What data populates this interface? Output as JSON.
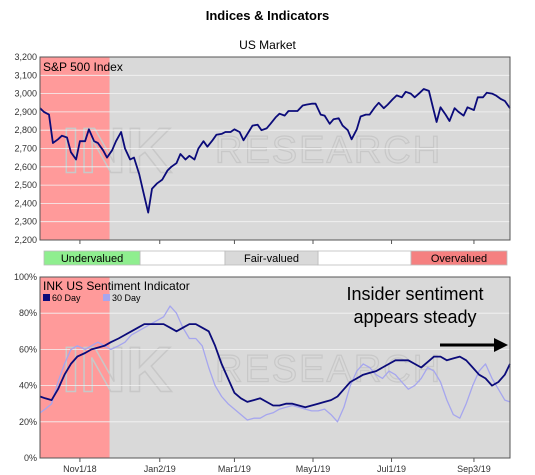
{
  "title": "Indices & Indicators",
  "subtitle": "US Market",
  "watermark": "RESEARCH",
  "colors": {
    "panel_bg": "#d9d9d9",
    "shade_red": "#ff9a9a",
    "line_dark": "#0b0b7a",
    "line_light": "#a6a6ee",
    "undervalued": "#8fee8f",
    "fairvalued": "#d9d9d9",
    "overvalued": "#f58080"
  },
  "valuation_bands": [
    {
      "label": "Undervalued",
      "color": "#8fee8f"
    },
    {
      "label": "Fair-valued",
      "color": "#d9d9d9"
    },
    {
      "label": "Overvalued",
      "color": "#f58080"
    }
  ],
  "annotation": {
    "line1": "Insider sentiment",
    "line2": "appears steady"
  },
  "chart_data": [
    {
      "type": "line",
      "name": "S&P 500 Index",
      "ylim": [
        2200,
        3200
      ],
      "yticks": [
        "3,200",
        "3,100",
        "3,000",
        "2,900",
        "2,800",
        "2,700",
        "2,600",
        "2,500",
        "2,400",
        "2,300",
        "2,200"
      ],
      "ytick_values": [
        3200,
        3100,
        3000,
        2900,
        2800,
        2700,
        2600,
        2500,
        2400,
        2300,
        2200
      ],
      "x_range": [
        "2018-10-01",
        "2019-10-01"
      ],
      "shaded_period": [
        "2018-10-01",
        "2018-11-24"
      ],
      "series": [
        {
          "name": "S&P 500 Index",
          "color": "#0b0b7a",
          "x": [
            "2018-10-01",
            "2018-10-04",
            "2018-10-08",
            "2018-10-11",
            "2018-10-15",
            "2018-10-18",
            "2018-10-22",
            "2018-10-25",
            "2018-10-29",
            "2018-11-01",
            "2018-11-05",
            "2018-11-08",
            "2018-11-12",
            "2018-11-15",
            "2018-11-19",
            "2018-11-22",
            "2018-11-26",
            "2018-11-29",
            "2018-12-03",
            "2018-12-06",
            "2018-12-10",
            "2018-12-13",
            "2018-12-17",
            "2018-12-20",
            "2018-12-24",
            "2018-12-27",
            "2018-12-31",
            "2019-01-04",
            "2019-01-08",
            "2019-01-11",
            "2019-01-15",
            "2019-01-18",
            "2019-01-22",
            "2019-01-25",
            "2019-01-29",
            "2019-02-01",
            "2019-02-05",
            "2019-02-08",
            "2019-02-12",
            "2019-02-15",
            "2019-02-19",
            "2019-02-22",
            "2019-02-26",
            "2019-03-01",
            "2019-03-05",
            "2019-03-08",
            "2019-03-12",
            "2019-03-15",
            "2019-03-19",
            "2019-03-22",
            "2019-03-26",
            "2019-03-29",
            "2019-04-02",
            "2019-04-05",
            "2019-04-09",
            "2019-04-12",
            "2019-04-16",
            "2019-04-19",
            "2019-04-23",
            "2019-04-26",
            "2019-04-30",
            "2019-05-03",
            "2019-05-07",
            "2019-05-10",
            "2019-05-14",
            "2019-05-17",
            "2019-05-21",
            "2019-05-24",
            "2019-05-28",
            "2019-05-31",
            "2019-06-04",
            "2019-06-07",
            "2019-06-11",
            "2019-06-14",
            "2019-06-18",
            "2019-06-21",
            "2019-06-25",
            "2019-06-28",
            "2019-07-02",
            "2019-07-05",
            "2019-07-09",
            "2019-07-12",
            "2019-07-16",
            "2019-07-19",
            "2019-07-23",
            "2019-07-26",
            "2019-07-30",
            "2019-08-02",
            "2019-08-05",
            "2019-08-08",
            "2019-08-12",
            "2019-08-15",
            "2019-08-19",
            "2019-08-22",
            "2019-08-26",
            "2019-08-29",
            "2019-09-03",
            "2019-09-06",
            "2019-09-10",
            "2019-09-13",
            "2019-09-17",
            "2019-09-20",
            "2019-09-24",
            "2019-09-27",
            "2019-10-01"
          ],
          "y": [
            2920,
            2900,
            2885,
            2730,
            2750,
            2770,
            2760,
            2680,
            2640,
            2740,
            2740,
            2805,
            2740,
            2730,
            2690,
            2650,
            2690,
            2740,
            2790,
            2700,
            2640,
            2650,
            2560,
            2470,
            2350,
            2480,
            2510,
            2530,
            2580,
            2600,
            2620,
            2670,
            2640,
            2660,
            2640,
            2700,
            2740,
            2710,
            2745,
            2775,
            2780,
            2790,
            2790,
            2805,
            2790,
            2745,
            2790,
            2825,
            2830,
            2800,
            2810,
            2835,
            2870,
            2890,
            2880,
            2905,
            2905,
            2905,
            2935,
            2940,
            2945,
            2945,
            2885,
            2880,
            2835,
            2860,
            2865,
            2825,
            2800,
            2750,
            2805,
            2875,
            2885,
            2885,
            2925,
            2950,
            2920,
            2940,
            2970,
            2990,
            2980,
            3010,
            3000,
            2980,
            3005,
            3025,
            3015,
            2930,
            2845,
            2925,
            2885,
            2850,
            2920,
            2900,
            2880,
            2925,
            2910,
            2980,
            2980,
            3005,
            3000,
            2990,
            2970,
            2960,
            2920
          ]
        }
      ]
    },
    {
      "type": "line",
      "name": "INK US Sentiment Indicator",
      "ylim": [
        0,
        100
      ],
      "yticks": [
        "100%",
        "80%",
        "60%",
        "40%",
        "20%",
        "0%"
      ],
      "ytick_values": [
        100,
        80,
        60,
        40,
        20,
        0
      ],
      "xticks": [
        "Nov1/18",
        "Jan2/19",
        "Mar1/19",
        "May1/19",
        "Jul1/19",
        "Sep3/19"
      ],
      "xtick_dates": [
        "2018-11-01",
        "2019-01-02",
        "2019-03-01",
        "2019-05-01",
        "2019-07-01",
        "2019-09-03"
      ],
      "x_range": [
        "2018-10-01",
        "2019-10-01"
      ],
      "shaded_period": [
        "2018-10-01",
        "2018-11-24"
      ],
      "series": [
        {
          "name": "60 Day",
          "color": "#0b0b7a",
          "x": [
            "2018-10-01",
            "2018-10-05",
            "2018-10-10",
            "2018-10-15",
            "2018-10-20",
            "2018-10-25",
            "2018-10-30",
            "2018-11-05",
            "2018-11-10",
            "2018-11-15",
            "2018-11-20",
            "2018-11-25",
            "2018-12-01",
            "2018-12-06",
            "2018-12-11",
            "2018-12-16",
            "2018-12-21",
            "2018-12-26",
            "2018-12-31",
            "2019-01-05",
            "2019-01-10",
            "2019-01-15",
            "2019-01-20",
            "2019-01-25",
            "2019-01-30",
            "2019-02-04",
            "2019-02-09",
            "2019-02-14",
            "2019-02-19",
            "2019-02-24",
            "2019-03-01",
            "2019-03-06",
            "2019-03-11",
            "2019-03-16",
            "2019-03-21",
            "2019-03-26",
            "2019-03-31",
            "2019-04-05",
            "2019-04-10",
            "2019-04-15",
            "2019-04-20",
            "2019-04-25",
            "2019-04-30",
            "2019-05-05",
            "2019-05-10",
            "2019-05-15",
            "2019-05-20",
            "2019-05-25",
            "2019-05-30",
            "2019-06-04",
            "2019-06-09",
            "2019-06-14",
            "2019-06-19",
            "2019-06-24",
            "2019-06-29",
            "2019-07-04",
            "2019-07-09",
            "2019-07-14",
            "2019-07-19",
            "2019-07-24",
            "2019-07-29",
            "2019-08-03",
            "2019-08-08",
            "2019-08-13",
            "2019-08-18",
            "2019-08-23",
            "2019-08-28",
            "2019-09-02",
            "2019-09-07",
            "2019-09-12",
            "2019-09-17",
            "2019-09-22",
            "2019-09-27",
            "2019-10-01"
          ],
          "y": [
            34,
            33,
            32,
            38,
            46,
            52,
            56,
            58,
            60,
            61,
            62,
            64,
            66,
            68,
            70,
            72,
            74,
            74,
            74,
            74,
            72,
            70,
            72,
            74,
            74,
            72,
            70,
            62,
            52,
            44,
            36,
            33,
            31,
            32,
            33,
            31,
            29,
            29,
            30,
            30,
            29,
            28,
            29,
            30,
            31,
            32,
            34,
            38,
            42,
            44,
            46,
            47,
            48,
            50,
            52,
            54,
            54,
            54,
            52,
            50,
            53,
            56,
            56,
            54,
            55,
            56,
            54,
            50,
            46,
            44,
            40,
            42,
            46,
            52
          ]
        },
        {
          "name": "30 Day",
          "color": "#a6a6ee",
          "x": [
            "2018-10-01",
            "2018-10-05",
            "2018-10-10",
            "2018-10-15",
            "2018-10-20",
            "2018-10-25",
            "2018-10-30",
            "2018-11-05",
            "2018-11-10",
            "2018-11-15",
            "2018-11-20",
            "2018-11-25",
            "2018-12-01",
            "2018-12-06",
            "2018-12-11",
            "2018-12-16",
            "2018-12-21",
            "2018-12-26",
            "2018-12-31",
            "2019-01-05",
            "2019-01-10",
            "2019-01-15",
            "2019-01-20",
            "2019-01-25",
            "2019-01-30",
            "2019-02-04",
            "2019-02-09",
            "2019-02-14",
            "2019-02-19",
            "2019-02-24",
            "2019-03-01",
            "2019-03-06",
            "2019-03-11",
            "2019-03-16",
            "2019-03-21",
            "2019-03-26",
            "2019-03-31",
            "2019-04-05",
            "2019-04-10",
            "2019-04-15",
            "2019-04-20",
            "2019-04-25",
            "2019-04-30",
            "2019-05-05",
            "2019-05-10",
            "2019-05-15",
            "2019-05-20",
            "2019-05-25",
            "2019-05-30",
            "2019-06-04",
            "2019-06-09",
            "2019-06-14",
            "2019-06-19",
            "2019-06-24",
            "2019-06-29",
            "2019-07-04",
            "2019-07-09",
            "2019-07-14",
            "2019-07-19",
            "2019-07-24",
            "2019-07-29",
            "2019-08-03",
            "2019-08-08",
            "2019-08-13",
            "2019-08-18",
            "2019-08-23",
            "2019-08-28",
            "2019-09-02",
            "2019-09-07",
            "2019-09-12",
            "2019-09-17",
            "2019-09-22",
            "2019-09-27",
            "2019-10-01"
          ],
          "y": [
            25,
            27,
            30,
            42,
            52,
            60,
            62,
            60,
            62,
            64,
            62,
            60,
            62,
            64,
            68,
            70,
            72,
            74,
            76,
            78,
            84,
            80,
            72,
            66,
            66,
            62,
            50,
            40,
            34,
            30,
            27,
            24,
            21,
            22,
            22,
            24,
            25,
            27,
            28,
            29,
            28,
            27,
            26,
            26,
            27,
            24,
            20,
            28,
            40,
            48,
            52,
            50,
            46,
            44,
            48,
            46,
            42,
            38,
            40,
            44,
            50,
            48,
            42,
            32,
            24,
            22,
            30,
            40,
            48,
            52,
            44,
            38,
            32,
            31
          ]
        }
      ]
    }
  ]
}
